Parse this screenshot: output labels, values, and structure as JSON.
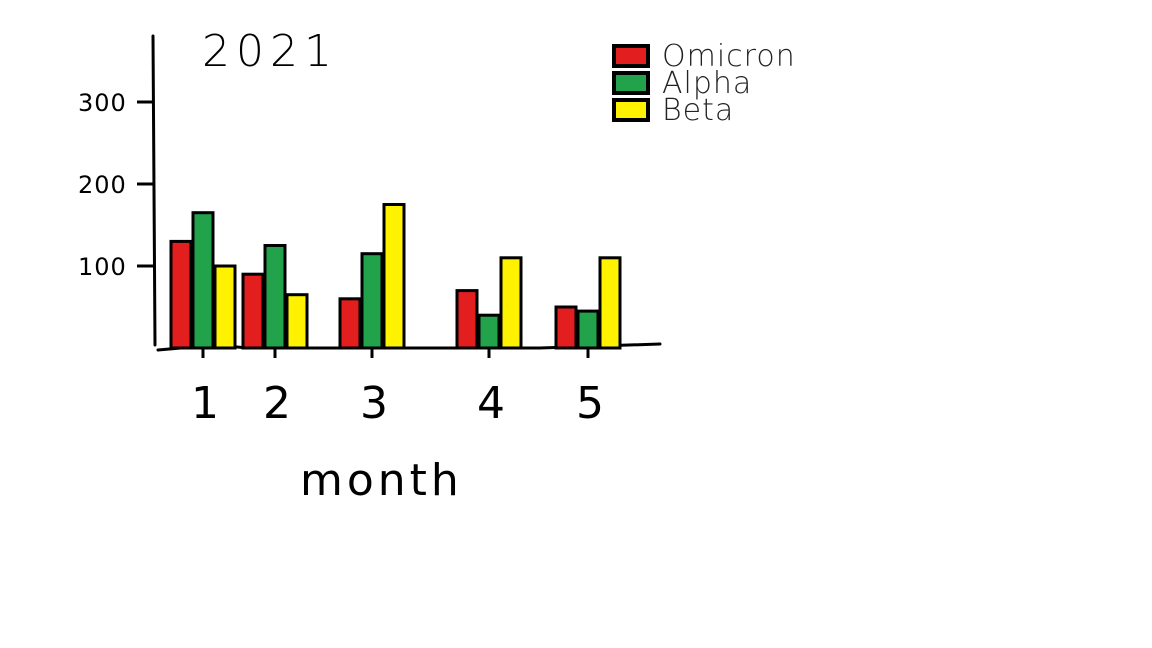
{
  "chart_data": {
    "type": "bar",
    "title": "2021",
    "xlabel": "month",
    "ylabel": "",
    "categories": [
      "1",
      "2",
      "3",
      "4",
      "5"
    ],
    "yticks": [
      "100",
      "200",
      "300"
    ],
    "ylim": [
      0,
      360
    ],
    "series": [
      {
        "name": "Omicron",
        "color": "#e21e1e",
        "values": [
          130,
          90,
          60,
          70,
          50
        ]
      },
      {
        "name": "Alpha",
        "color": "#22a24a",
        "values": [
          165,
          125,
          115,
          40,
          45
        ]
      },
      {
        "name": "Beta",
        "color": "#fff200",
        "values": [
          100,
          65,
          175,
          110,
          110
        ]
      }
    ],
    "legend_position": "top-right",
    "grid": false
  }
}
